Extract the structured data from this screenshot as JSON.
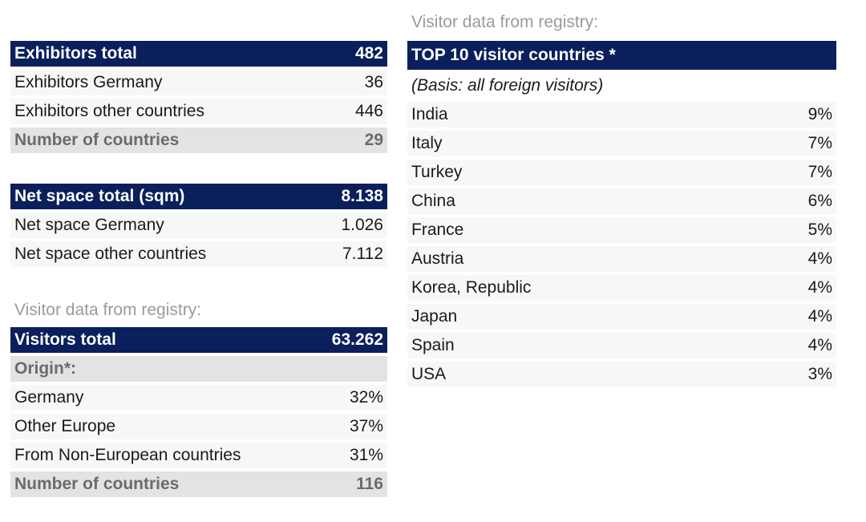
{
  "exhibitors": {
    "header": {
      "label": "Exhibitors total",
      "value": "482"
    },
    "rows": [
      {
        "label": "Exhibitors Germany",
        "value": "36"
      },
      {
        "label": "Exhibitors other countries",
        "value": "446"
      }
    ],
    "countries": {
      "label": "Number of countries",
      "value": "29"
    }
  },
  "net_space": {
    "header": {
      "label": "Net space total (sqm)",
      "value": "8.138"
    },
    "rows": [
      {
        "label": "Net space Germany",
        "value": "1.026"
      },
      {
        "label": "Net space other countries",
        "value": "7.112"
      }
    ]
  },
  "visitors": {
    "section_label": "Visitor data from registry:",
    "header": {
      "label": "Visitors total",
      "value": "63.262"
    },
    "origin_label": "Origin*:",
    "rows": [
      {
        "label": "Germany",
        "value": "32%"
      },
      {
        "label": "Other Europe",
        "value": "37%"
      },
      {
        "label": "From Non-European countries",
        "value": "31%"
      }
    ],
    "countries": {
      "label": "Number of countries",
      "value": "116"
    }
  },
  "top10": {
    "section_label": "Visitor data from registry:",
    "header": "TOP 10 visitor countries *",
    "basis": "(Basis: all foreign visitors)",
    "rows": [
      {
        "label": "India",
        "value": "9%"
      },
      {
        "label": "Italy",
        "value": "7%"
      },
      {
        "label": "Turkey",
        "value": "7%"
      },
      {
        "label": "China",
        "value": "6%"
      },
      {
        "label": "France",
        "value": "5%"
      },
      {
        "label": "Austria",
        "value": "4%"
      },
      {
        "label": "Korea, Republic",
        "value": "4%"
      },
      {
        "label": "Japan",
        "value": "4%"
      },
      {
        "label": "Spain",
        "value": "4%"
      },
      {
        "label": "USA",
        "value": "3%"
      }
    ]
  }
}
